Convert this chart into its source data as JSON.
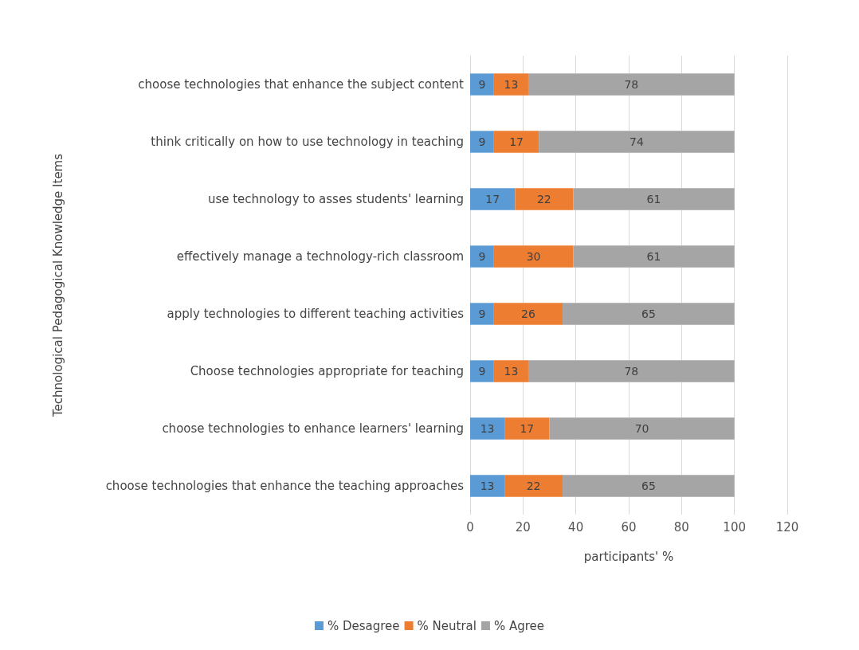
{
  "chart_data": {
    "type": "bar",
    "orientation": "horizontal",
    "stacked": true,
    "xlabel": "participants' %",
    "ylabel": "Technological Pedagogical Knowledge Items",
    "categories": [
      "choose technologies that enhance the subject content",
      "think critically on how to use technology in teaching",
      "use technology to asses students' learning",
      "effectively manage a technology-rich classroom",
      "apply technologies to different teaching activities",
      "Choose technologies appropriate for teaching",
      "choose technologies to enhance learners' learning",
      "choose technologies that enhance the teaching approaches"
    ],
    "series": [
      {
        "name": "% Desagree",
        "color": "#5b9bd5",
        "values": [
          9,
          9,
          17,
          9,
          9,
          9,
          13,
          13
        ]
      },
      {
        "name": "% Neutral",
        "color": "#ed7d31",
        "values": [
          13,
          17,
          22,
          30,
          26,
          13,
          17,
          22
        ]
      },
      {
        "name": "% Agree",
        "color": "#a5a5a5",
        "values": [
          78,
          74,
          61,
          61,
          65,
          78,
          70,
          65
        ]
      }
    ],
    "xlim": [
      0,
      120
    ],
    "xticks": [
      0,
      20,
      40,
      60,
      80,
      100,
      120
    ],
    "grid": "x",
    "legend": "bottom",
    "data_labels": true
  }
}
